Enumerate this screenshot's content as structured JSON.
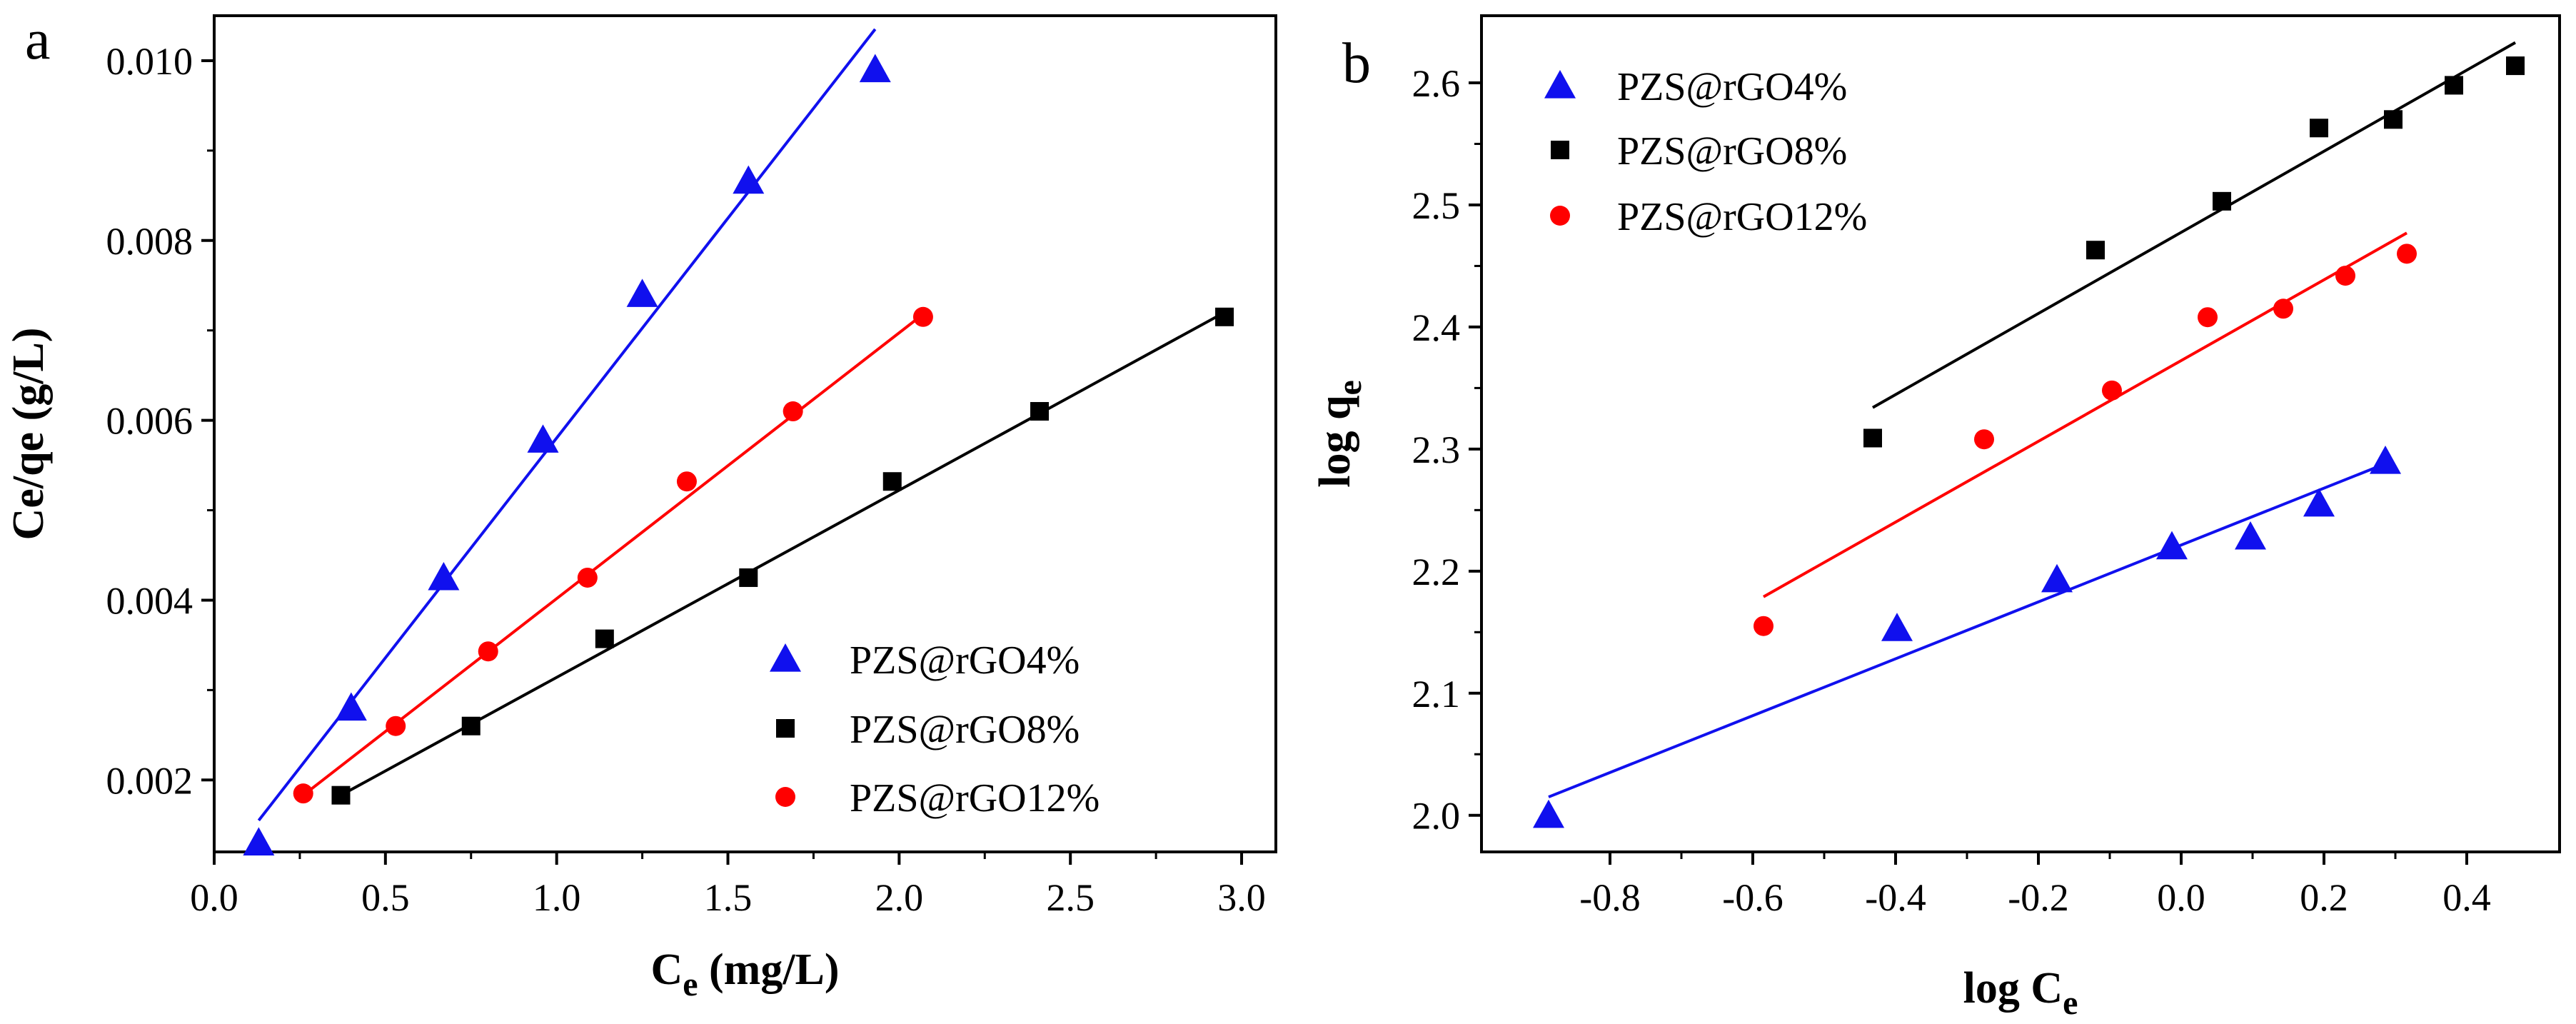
{
  "chart_data": [
    {
      "type": "scatter",
      "panel_label": "a",
      "xlabel": "C",
      "xlabel_sub": "e",
      "xlabel_suffix": " (mg/L)",
      "ylabel": "Ce/qe (g/L)",
      "xlim": [
        0.0,
        3.1
      ],
      "ylim": [
        0.0012,
        0.0105
      ],
      "xticks": [
        "0.0",
        "0.5",
        "1.0",
        "1.5",
        "2.0",
        "2.5",
        "3.0"
      ],
      "xtick_values": [
        0.0,
        0.5,
        1.0,
        1.5,
        2.0,
        2.5,
        3.0
      ],
      "yticks": [
        "0.002",
        "0.004",
        "0.006",
        "0.008",
        "0.010"
      ],
      "ytick_values": [
        0.002,
        0.004,
        0.006,
        0.008,
        0.01
      ],
      "legend_position": "bottom-right",
      "series": [
        {
          "name": "PZS@rGO4%",
          "marker": "triangle",
          "color": "#1010ee",
          "x": [
            0.13,
            0.4,
            0.67,
            0.96,
            1.25,
            1.56,
            1.93
          ],
          "y": [
            0.0013,
            0.0028,
            0.00425,
            0.00578,
            0.0074,
            0.00866,
            0.0099
          ],
          "fit": {
            "x": [
              0.13,
              1.93
            ],
            "y": [
              0.00155,
              0.01035
            ]
          }
        },
        {
          "name": "PZS@rGO8%",
          "marker": "square",
          "color": "#000000",
          "x": [
            0.37,
            0.75,
            1.14,
            1.56,
            1.98,
            2.41,
            2.95
          ],
          "y": [
            0.00183,
            0.0026,
            0.00357,
            0.00425,
            0.00532,
            0.0061,
            0.00715
          ],
          "fit": {
            "x": [
              0.37,
              2.95
            ],
            "y": [
              0.00183,
              0.0072
            ]
          }
        },
        {
          "name": "PZS@rGO12%",
          "marker": "circle",
          "color": "#ff0000",
          "x": [
            0.26,
            0.53,
            0.8,
            1.09,
            1.38,
            1.69,
            2.07
          ],
          "y": [
            0.00185,
            0.0026,
            0.00343,
            0.00425,
            0.00532,
            0.0061,
            0.00715
          ],
          "fit": {
            "x": [
              0.26,
              2.07
            ],
            "y": [
              0.00183,
              0.00718
            ]
          }
        }
      ]
    },
    {
      "type": "scatter",
      "panel_label": "b",
      "xlabel": "log C",
      "xlabel_sub": "e",
      "xlabel_suffix": "",
      "ylabel": "log q",
      "ylabel_sub": "e",
      "xlim": [
        -0.98,
        0.53
      ],
      "ylim": [
        1.97,
        2.655
      ],
      "xticks": [
        "-0.8",
        "-0.6",
        "-0.4",
        "-0.2",
        "0.0",
        "0.2",
        "0.4"
      ],
      "xtick_values": [
        -0.8,
        -0.6,
        -0.4,
        -0.2,
        0.0,
        0.2,
        0.4
      ],
      "yticks": [
        "2.0",
        "2.1",
        "2.2",
        "2.3",
        "2.4",
        "2.5",
        "2.6"
      ],
      "ytick_values": [
        2.0,
        2.1,
        2.2,
        2.3,
        2.4,
        2.5,
        2.6
      ],
      "legend_position": "top-left",
      "series": [
        {
          "name": "PZS@rGO4%",
          "marker": "triangle",
          "color": "#1010ee",
          "x": [
            -0.886,
            -0.398,
            -0.174,
            -0.013,
            0.097,
            0.193,
            0.286
          ],
          "y": [
            2.0,
            2.153,
            2.193,
            2.22,
            2.228,
            2.255,
            2.29
          ],
          "fit": {
            "x": [
              -0.886,
              0.286
            ],
            "y": [
              2.015,
              2.288
            ]
          }
        },
        {
          "name": "PZS@rGO8%",
          "marker": "square",
          "color": "#000000",
          "x": [
            -0.432,
            -0.12,
            0.057,
            0.193,
            0.297,
            0.382,
            0.468
          ],
          "y": [
            2.309,
            2.463,
            2.503,
            2.563,
            2.57,
            2.598,
            2.614
          ],
          "fit": {
            "x": [
              -0.432,
              0.468
            ],
            "y": [
              2.334,
              2.633
            ]
          }
        },
        {
          "name": "PZS@rGO12%",
          "marker": "circle",
          "color": "#ff0000",
          "x": [
            -0.585,
            -0.276,
            -0.097,
            0.037,
            0.143,
            0.23,
            0.316
          ],
          "y": [
            2.155,
            2.308,
            2.348,
            2.408,
            2.415,
            2.442,
            2.46
          ],
          "fit": {
            "x": [
              -0.585,
              0.316
            ],
            "y": [
              2.179,
              2.477
            ]
          }
        }
      ]
    }
  ]
}
